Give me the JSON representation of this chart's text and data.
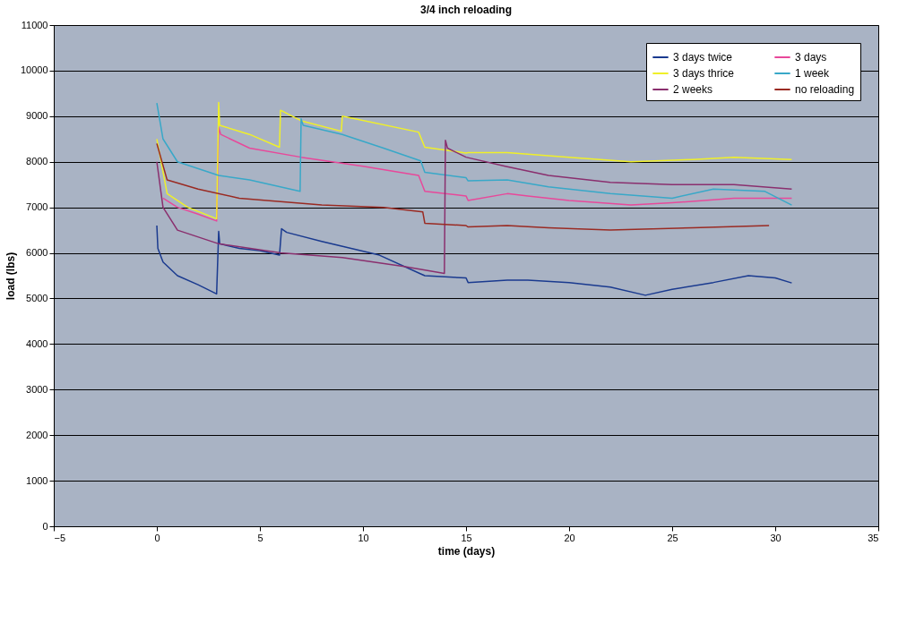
{
  "chart_data": {
    "type": "line",
    "title": "3/4 inch reloading",
    "xlabel": "time (days)",
    "ylabel": "load (lbs)",
    "xlim": [
      -5,
      35
    ],
    "xticks": [
      -5,
      0,
      5,
      10,
      15,
      20,
      25,
      30,
      35
    ],
    "ylim": [
      0,
      11000
    ],
    "yticks": [
      0,
      1000,
      2000,
      3000,
      4000,
      5000,
      6000,
      7000,
      8000,
      9000,
      10000,
      11000
    ],
    "grid": "y",
    "legend": "top right",
    "marker": "none",
    "line_style": "solid",
    "series": [
      {
        "name": "3 days twice",
        "color": "#1a3a8f",
        "x": [
          0,
          0.05,
          0.3,
          1,
          2,
          2.9,
          3,
          3.05,
          4,
          5,
          5.95,
          6.05,
          6.3,
          8,
          10.8,
          12.8,
          13,
          15,
          15.1,
          17,
          18,
          20,
          22,
          23.7,
          25,
          27,
          28.7,
          30,
          30.8
        ],
        "values": [
          6600,
          6100,
          5800,
          5500,
          5300,
          5100,
          6470,
          6200,
          6100,
          6050,
          5950,
          6530,
          6450,
          6250,
          5950,
          5540,
          5500,
          5450,
          5350,
          5400,
          5400,
          5350,
          5250,
          5070,
          5200,
          5350,
          5500,
          5450,
          5340
        ]
      },
      {
        "name": "3 days",
        "color": "#e8489a",
        "x": [
          0.3,
          1,
          2,
          2.9,
          3,
          3.1,
          4.5,
          7,
          10,
          12.7,
          13,
          15,
          15.1,
          17,
          18,
          20,
          23,
          25,
          28,
          30.8
        ],
        "values": [
          7200,
          7000,
          6850,
          6700,
          8750,
          8600,
          8300,
          8100,
          7900,
          7700,
          7350,
          7250,
          7150,
          7300,
          7250,
          7150,
          7050,
          7100,
          7200,
          7200
        ]
      },
      {
        "name": "3 days thrice",
        "color": "#f0f028",
        "x": [
          0,
          0.5,
          1.5,
          2.9,
          3,
          3.05,
          4.5,
          5.95,
          6,
          7,
          8.95,
          9,
          12.7,
          13,
          15,
          15.1,
          17,
          20,
          23,
          26,
          28,
          30.8
        ],
        "values": [
          8500,
          7300,
          7000,
          6750,
          9300,
          8800,
          8600,
          8320,
          9130,
          8900,
          8670,
          9000,
          8650,
          8320,
          8190,
          8200,
          8200,
          8100,
          8000,
          8050,
          8100,
          8050
        ]
      },
      {
        "name": "1 week",
        "color": "#38a8c8",
        "x": [
          0,
          0.3,
          1,
          3,
          4.5,
          6.95,
          7,
          7.1,
          9,
          11,
          12.8,
          13,
          15,
          15.1,
          17,
          19,
          22,
          25,
          27,
          29.5,
          30.8
        ],
        "values": [
          9290,
          8500,
          8000,
          7700,
          7600,
          7350,
          8940,
          8800,
          8600,
          8300,
          8020,
          7770,
          7650,
          7580,
          7600,
          7450,
          7300,
          7200,
          7400,
          7350,
          7050
        ]
      },
      {
        "name": "2 weeks",
        "color": "#8a2f6e",
        "x": [
          0,
          0.3,
          1,
          3,
          6,
          9,
          12,
          13.95,
          14,
          14.1,
          15,
          16.9,
          19,
          22,
          25,
          28,
          30.8
        ],
        "values": [
          8000,
          7000,
          6500,
          6200,
          6000,
          5900,
          5700,
          5550,
          8470,
          8300,
          8100,
          7900,
          7700,
          7550,
          7500,
          7500,
          7400
        ]
      },
      {
        "name": "no reloading",
        "color": "#9a2a22",
        "x": [
          0,
          0.5,
          2,
          4,
          8,
          11,
          12.9,
          13,
          15,
          15.1,
          17,
          19,
          22,
          26,
          29.7
        ],
        "values": [
          8400,
          7600,
          7400,
          7200,
          7050,
          7000,
          6900,
          6650,
          6600,
          6570,
          6600,
          6550,
          6500,
          6550,
          6600
        ]
      }
    ]
  }
}
